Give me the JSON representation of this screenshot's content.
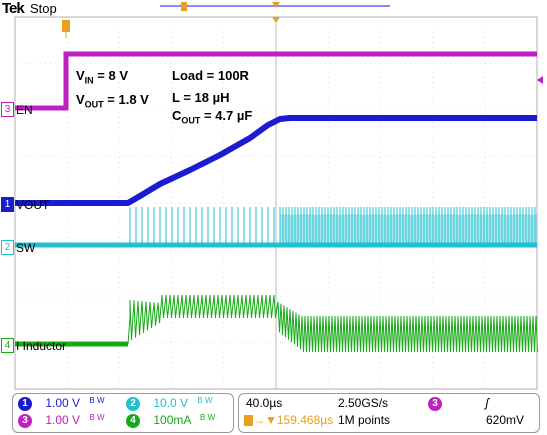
{
  "header": {
    "brand": "Tek",
    "run_state": "Stop"
  },
  "annotations": {
    "vin": {
      "prefix": "V",
      "sub": "IN",
      "rest": " = 8 V"
    },
    "vout": {
      "prefix": "V",
      "sub": "OUT",
      "rest": " = 1.8 V"
    },
    "load": "Load  = 100R",
    "inductance": "L = 18 µH",
    "cout": {
      "prefix": "C",
      "sub": "OUT",
      "rest": " = 4.7 µF"
    }
  },
  "channels": [
    {
      "num": "3",
      "label": "EN",
      "color": "#c020c0"
    },
    {
      "num": "1",
      "label": "VOUT",
      "color": "#1b1bd0"
    },
    {
      "num": "2",
      "label": "SW",
      "color": "#20c0d0"
    },
    {
      "num": "4",
      "label": "I Inductor",
      "color": "#18a818"
    }
  ],
  "markers": {
    "trigger_marker": "T",
    "trigger_pos_marker": "T"
  },
  "footer": {
    "ch1_num": "1",
    "ch1_scale": "1.00 V",
    "ch1_bw": "B W",
    "ch3_num": "3",
    "ch3_scale": "1.00 V",
    "ch3_bw": "B W",
    "ch2_num": "2",
    "ch2_scale": "10.0 V",
    "ch2_bw": "B W",
    "ch4_num": "4",
    "ch4_scale": "100mA",
    "ch4_bw": "B W",
    "timebase": "40.0µs",
    "sample_rate": "2.50GS/s",
    "trigger_pos": "▼159.468µs",
    "record_length": "1M points",
    "trig_source_num": "3",
    "trig_slope": "ʃ",
    "trig_level": "620mV"
  },
  "colors": {
    "ch1": "#1b1bd0",
    "ch2": "#20c0d0",
    "ch3": "#c020c0",
    "ch4": "#18a818",
    "trigger": "#e8a020",
    "grid": "#b0b0b0"
  }
}
